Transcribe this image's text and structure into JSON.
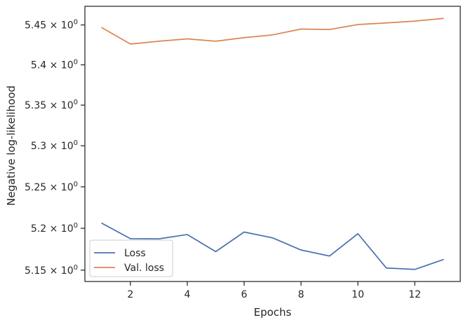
{
  "chart_data": {
    "type": "line",
    "xlabel": "Epochs",
    "ylabel": "Negative log-likelihood",
    "yscale": "log",
    "xlim": [
      0.4,
      13.6
    ],
    "ylim": [
      5.1365,
      5.4735
    ],
    "grid": false,
    "legend_position": "lower-left",
    "x": [
      1,
      2,
      3,
      4,
      5,
      6,
      7,
      8,
      9,
      10,
      11,
      12,
      13
    ],
    "x_ticks": [
      {
        "value": 2,
        "label": "2"
      },
      {
        "value": 4,
        "label": "4"
      },
      {
        "value": 6,
        "label": "6"
      },
      {
        "value": 8,
        "label": "8"
      },
      {
        "value": 10,
        "label": "10"
      },
      {
        "value": 12,
        "label": "12"
      }
    ],
    "y_ticks": [
      {
        "value": 5.15,
        "mantissa": "5.15"
      },
      {
        "value": 5.2,
        "mantissa": "5.2"
      },
      {
        "value": 5.25,
        "mantissa": "5.25"
      },
      {
        "value": 5.3,
        "mantissa": "5.3"
      },
      {
        "value": 5.35,
        "mantissa": "5.35"
      },
      {
        "value": 5.4,
        "mantissa": "5.4"
      },
      {
        "value": 5.45,
        "mantissa": "5.45"
      }
    ],
    "y_tick_suffix": "× 10",
    "y_tick_exponent": "0",
    "series": [
      {
        "name": "Loss",
        "color": "#4c72b0",
        "values": [
          5.206,
          5.1875,
          5.1873,
          5.1925,
          5.172,
          5.1955,
          5.1885,
          5.174,
          5.1668,
          5.1935,
          5.1525,
          5.1508,
          5.1625
        ]
      },
      {
        "name": "Val. loss",
        "color": "#dd8452",
        "values": [
          5.4465,
          5.426,
          5.4295,
          5.4325,
          5.4295,
          5.434,
          5.4375,
          5.4448,
          5.4443,
          5.4505,
          5.4525,
          5.4548,
          5.4582
        ]
      }
    ]
  }
}
